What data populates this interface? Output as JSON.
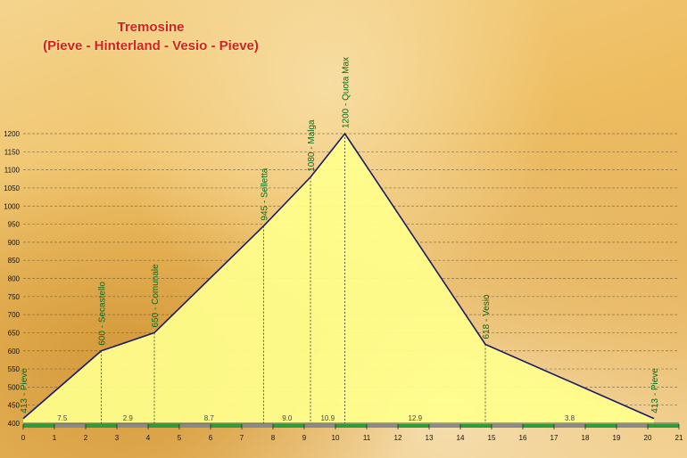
{
  "title": "Tremosine",
  "subtitle": "(Pieve - Hinterland - Vesio - Pieve)",
  "chart_data": {
    "type": "area",
    "title": "Tremosine",
    "subtitle": "(Pieve - Hinterland - Vesio - Pieve)",
    "xlim": [
      0,
      21
    ],
    "ylim": [
      400,
      1200
    ],
    "x_ticks": [
      0,
      1,
      2,
      3,
      4,
      5,
      6,
      7,
      8,
      9,
      10,
      11,
      12,
      13,
      14,
      15,
      16,
      17,
      18,
      19,
      20,
      21
    ],
    "y_ticks": [
      400,
      450,
      500,
      550,
      600,
      650,
      700,
      750,
      800,
      850,
      900,
      950,
      1000,
      1050,
      1100,
      1150,
      1200
    ],
    "grid": true,
    "fill_color": "#ffff8c",
    "line_color": "#1a1a66",
    "axis_bar_colors": [
      "#2e9c3a",
      "#8a8a8a"
    ],
    "points": [
      {
        "x": 0,
        "y": 413,
        "label": "413 - Pieve"
      },
      {
        "x": 2.5,
        "y": 600,
        "label": "600 - Secastello"
      },
      {
        "x": 4.2,
        "y": 650,
        "label": "650 - Comunale"
      },
      {
        "x": 7.7,
        "y": 945,
        "label": "945 - Selletta"
      },
      {
        "x": 9.2,
        "y": 1080,
        "label": "1080 - Malga"
      },
      {
        "x": 10.3,
        "y": 1200,
        "label": "1200 - Quota Max"
      },
      {
        "x": 14.8,
        "y": 618,
        "label": "618 - Vesio"
      },
      {
        "x": 20.2,
        "y": 413,
        "label": "413 - Pieve"
      }
    ],
    "segment_gradients": [
      "7.5",
      "2.9",
      "8.7",
      "9.0",
      "10.9",
      "12.9",
      "3.8"
    ]
  }
}
